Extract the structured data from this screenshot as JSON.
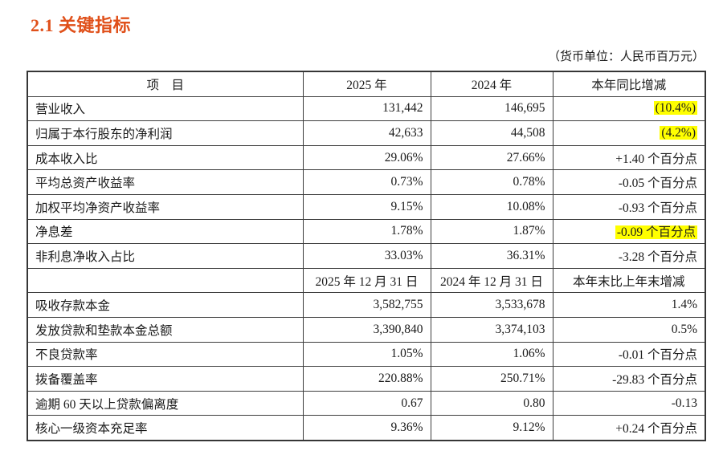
{
  "section": {
    "title": "2.1 关键指标",
    "unit_note": "（货币单位：人民币百万元）"
  },
  "colors": {
    "title_accent": "#e0501a",
    "highlight": "#ffff00",
    "table_border": "#3d3d3d"
  },
  "table": {
    "rows": [
      {
        "type": "header",
        "cells": [
          "项　目",
          "2025 年",
          "2024 年",
          "本年同比增减"
        ]
      },
      {
        "type": "data",
        "label": "营业收入",
        "v1": "131,442",
        "v2": "146,695",
        "chg": "(10.4%)",
        "hl": true
      },
      {
        "type": "data",
        "label": "归属于本行股东的净利润",
        "v1": "42,633",
        "v2": "44,508",
        "chg": "(4.2%)",
        "hl": true
      },
      {
        "type": "data",
        "label": "成本收入比",
        "v1": "29.06%",
        "v2": "27.66%",
        "chg": "+1.40 个百分点",
        "hl": false
      },
      {
        "type": "data",
        "label": "平均总资产收益率",
        "v1": "0.73%",
        "v2": "0.78%",
        "chg": "-0.05 个百分点",
        "hl": false
      },
      {
        "type": "data",
        "label": "加权平均净资产收益率",
        "v1": "9.15%",
        "v2": "10.08%",
        "chg": "-0.93 个百分点",
        "hl": false
      },
      {
        "type": "data",
        "label": "净息差",
        "v1": "1.78%",
        "v2": "1.87%",
        "chg": "-0.09 个百分点",
        "hl": true
      },
      {
        "type": "data",
        "label": "非利息净收入占比",
        "v1": "33.03%",
        "v2": "36.31%",
        "chg": "-3.28 个百分点",
        "hl": false
      },
      {
        "type": "header",
        "cells": [
          "",
          "2025 年 12 月 31 日",
          "2024 年 12 月 31 日",
          "本年末比上年末增减"
        ]
      },
      {
        "type": "data",
        "label": "吸收存款本金",
        "v1": "3,582,755",
        "v2": "3,533,678",
        "chg": "1.4%",
        "hl": false
      },
      {
        "type": "data",
        "label": "发放贷款和垫款本金总额",
        "v1": "3,390,840",
        "v2": "3,374,103",
        "chg": "0.5%",
        "hl": false
      },
      {
        "type": "data",
        "label": "不良贷款率",
        "v1": "1.05%",
        "v2": "1.06%",
        "chg": "-0.01 个百分点",
        "hl": false
      },
      {
        "type": "data",
        "label": "拨备覆盖率",
        "v1": "220.88%",
        "v2": "250.71%",
        "chg": "-29.83 个百分点",
        "hl": false
      },
      {
        "type": "data",
        "label": "逾期 60 天以上贷款偏离度",
        "v1": "0.67",
        "v2": "0.80",
        "chg": "-0.13",
        "hl": false
      },
      {
        "type": "data",
        "label": "核心一级资本充足率",
        "v1": "9.36%",
        "v2": "9.12%",
        "chg": "+0.24 个百分点",
        "hl": false
      }
    ]
  }
}
